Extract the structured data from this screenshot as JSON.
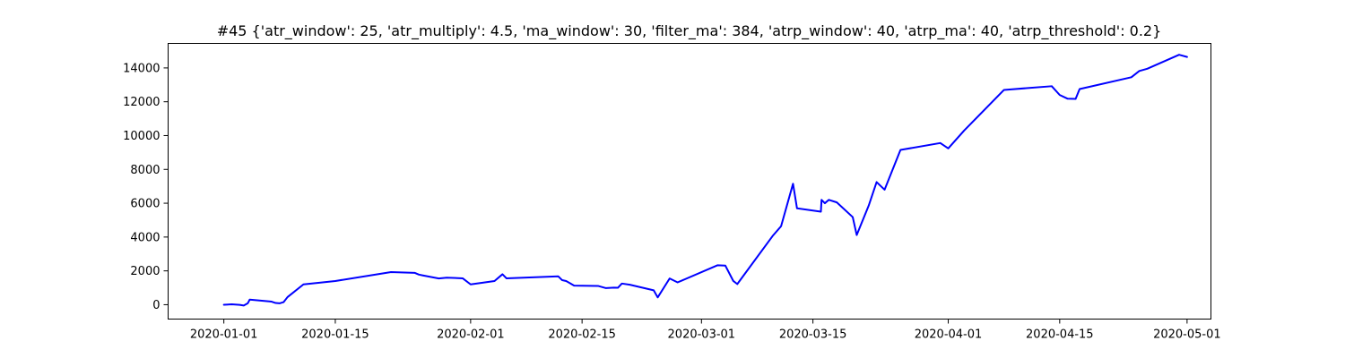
{
  "chart_data": {
    "type": "line",
    "title": "#45 {'atr_window': 25, 'atr_multiply': 4.5, 'ma_window': 30, 'filter_ma': 384, 'atrp_window': 40, 'atrp_ma': 40, 'atrp_threshold': 0.2}",
    "xlabel": "",
    "ylabel": "",
    "x_type": "date",
    "xlim": [
      "2019-12-25",
      "2020-05-04"
    ],
    "ylim": [
      -850,
      15450
    ],
    "x_ticks": [
      "2020-01-01",
      "2020-01-15",
      "2020-02-01",
      "2020-02-15",
      "2020-03-01",
      "2020-03-15",
      "2020-04-01",
      "2020-04-15",
      "2020-05-01"
    ],
    "y_ticks": [
      0,
      2000,
      4000,
      6000,
      8000,
      10000,
      12000,
      14000
    ],
    "grid": false,
    "series": [
      {
        "color": "#0000ff",
        "points": [
          [
            "2020-01-01",
            0
          ],
          [
            "2020-01-02",
            20
          ],
          [
            "2020-01-03",
            -10
          ],
          [
            "2020-01-03T12:00",
            -50
          ],
          [
            "2020-01-04",
            80
          ],
          [
            "2020-01-04T06:00",
            300
          ],
          [
            "2020-01-07",
            180
          ],
          [
            "2020-01-07T12:00",
            100
          ],
          [
            "2020-01-08",
            80
          ],
          [
            "2020-01-08T12:00",
            150
          ],
          [
            "2020-01-09",
            450
          ],
          [
            "2020-01-11",
            1200
          ],
          [
            "2020-01-15",
            1400
          ],
          [
            "2020-01-22",
            1930
          ],
          [
            "2020-01-25",
            1880
          ],
          [
            "2020-01-25T12:00",
            1780
          ],
          [
            "2020-01-26",
            1730
          ],
          [
            "2020-01-28",
            1550
          ],
          [
            "2020-01-29",
            1600
          ],
          [
            "2020-01-31",
            1560
          ],
          [
            "2020-02-01",
            1200
          ],
          [
            "2020-02-04",
            1400
          ],
          [
            "2020-02-05",
            1800
          ],
          [
            "2020-02-05T12:00",
            1560
          ],
          [
            "2020-02-12",
            1680
          ],
          [
            "2020-02-12T12:00",
            1450
          ],
          [
            "2020-02-13",
            1400
          ],
          [
            "2020-02-14",
            1130
          ],
          [
            "2020-02-17",
            1110
          ],
          [
            "2020-02-18",
            980
          ],
          [
            "2020-02-19",
            1010
          ],
          [
            "2020-02-19T12:00",
            1000
          ],
          [
            "2020-02-20",
            1250
          ],
          [
            "2020-02-21",
            1180
          ],
          [
            "2020-02-24",
            850
          ],
          [
            "2020-02-24T12:00",
            430
          ],
          [
            "2020-02-26",
            1550
          ],
          [
            "2020-02-27",
            1320
          ],
          [
            "2020-03-03",
            2330
          ],
          [
            "2020-03-04",
            2310
          ],
          [
            "2020-03-05",
            1400
          ],
          [
            "2020-03-05T12:00",
            1220
          ],
          [
            "2020-03-10",
            4100
          ],
          [
            "2020-03-11",
            4640
          ],
          [
            "2020-03-12T12:00",
            7150
          ],
          [
            "2020-03-13",
            5700
          ],
          [
            "2020-03-16",
            5500
          ],
          [
            "2020-03-16T02:00",
            6200
          ],
          [
            "2020-03-16T12:00",
            6000
          ],
          [
            "2020-03-17",
            6200
          ],
          [
            "2020-03-18",
            6050
          ],
          [
            "2020-03-20",
            5180
          ],
          [
            "2020-03-20T12:00",
            4120
          ],
          [
            "2020-03-22",
            5850
          ],
          [
            "2020-03-23",
            7250
          ],
          [
            "2020-03-24",
            6800
          ],
          [
            "2020-03-26",
            9150
          ],
          [
            "2020-03-31",
            9560
          ],
          [
            "2020-04-01",
            9240
          ],
          [
            "2020-04-03",
            10300
          ],
          [
            "2020-04-08",
            12700
          ],
          [
            "2020-04-14",
            12920
          ],
          [
            "2020-04-15",
            12400
          ],
          [
            "2020-04-16",
            12180
          ],
          [
            "2020-04-17",
            12170
          ],
          [
            "2020-04-17T12:00",
            12750
          ],
          [
            "2020-04-24",
            13450
          ],
          [
            "2020-04-25",
            13820
          ],
          [
            "2020-04-26",
            13950
          ],
          [
            "2020-04-30",
            14780
          ],
          [
            "2020-05-01",
            14650
          ]
        ]
      }
    ]
  }
}
